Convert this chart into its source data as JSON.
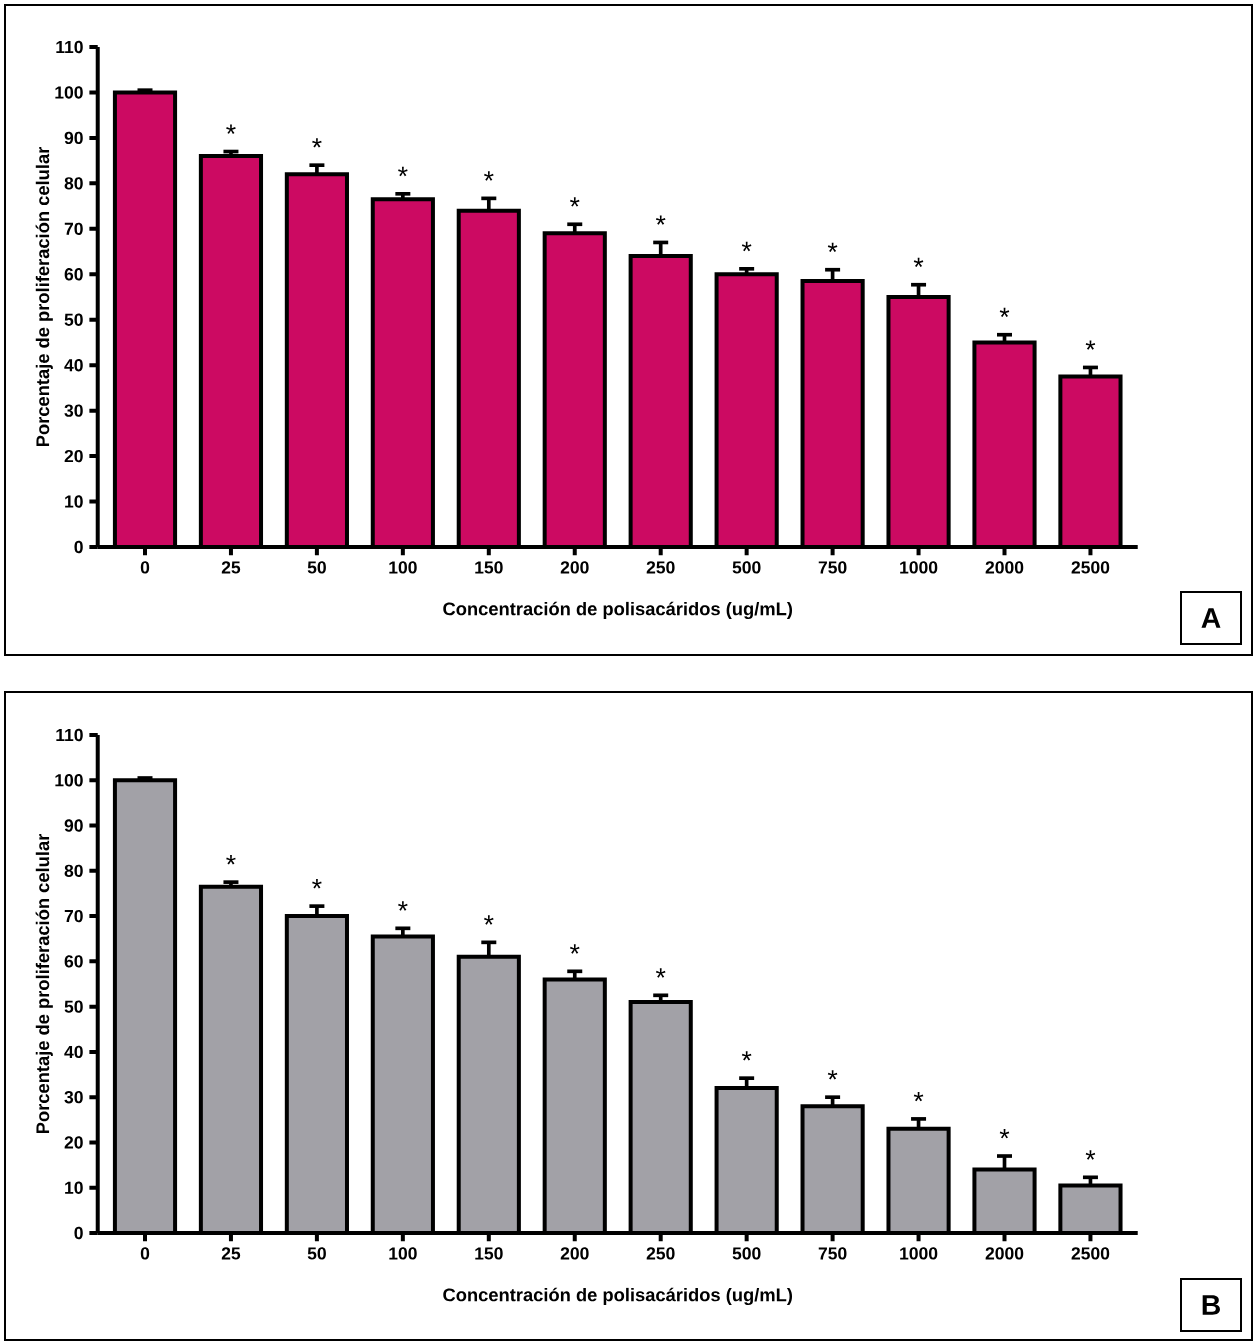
{
  "chart_data": [
    {
      "type": "bar",
      "categories": [
        "0",
        "25",
        "50",
        "100",
        "150",
        "200",
        "250",
        "500",
        "750",
        "1000",
        "2000",
        "2500"
      ],
      "values": [
        100,
        86,
        82,
        76.5,
        74,
        69,
        64,
        60,
        58.5,
        55,
        45,
        37.5
      ],
      "errors": [
        0.5,
        1,
        2,
        1.2,
        2.7,
        2,
        3,
        1.2,
        2.5,
        2.7,
        1.7,
        2
      ],
      "color": "#cc0a62",
      "ylim": [
        0,
        110
      ],
      "yticks": [
        0,
        10,
        20,
        30,
        40,
        50,
        60,
        70,
        80,
        90,
        100,
        110
      ],
      "xlabel": "Concentración de polisacáridos (ug/mL)",
      "ylabel": "Porcentaje de proliferación celular",
      "annotations": [
        {
          "text": "*",
          "x": "25",
          "y": 86
        },
        {
          "text": "*",
          "x": "50",
          "y": 82
        },
        {
          "text": "*",
          "x": "100",
          "y": 76.5
        },
        {
          "text": "*",
          "x": "150",
          "y": 74
        },
        {
          "text": "*",
          "x": "200",
          "y": 69
        },
        {
          "text": "*",
          "x": "250",
          "y": 64
        },
        {
          "text": "*",
          "x": "500",
          "y": 60
        },
        {
          "text": "*",
          "x": "750",
          "y": 58.5
        },
        {
          "text": "*",
          "x": "1000",
          "y": 55
        },
        {
          "text": "*",
          "x": "2000",
          "y": 45
        },
        {
          "text": "*",
          "x": "2500",
          "y": 37.5
        },
        "A"
      ]
    },
    {
      "type": "bar",
      "categories": [
        "0",
        "25",
        "50",
        "100",
        "150",
        "200",
        "250",
        "500",
        "750",
        "1000",
        "2000",
        "2500"
      ],
      "values": [
        100,
        76.5,
        70,
        65.5,
        61,
        56,
        51,
        32,
        28,
        23,
        14,
        10.5
      ],
      "errors": [
        0.5,
        1,
        2.2,
        1.8,
        3.2,
        1.8,
        1.5,
        2.2,
        2,
        2.2,
        3,
        1.8
      ],
      "color": "#a2a1a7",
      "ylim": [
        0,
        110
      ],
      "yticks": [
        0,
        10,
        20,
        30,
        40,
        50,
        60,
        70,
        80,
        90,
        100,
        110
      ],
      "xlabel": "Concentración de polisacáridos (ug/mL)",
      "ylabel": "Porcentaje de proliferación celular",
      "annotations": [
        {
          "text": "*",
          "x": "25",
          "y": 76.5
        },
        {
          "text": "*",
          "x": "50",
          "y": 70
        },
        {
          "text": "*",
          "x": "100",
          "y": 65.5
        },
        {
          "text": "*",
          "x": "150",
          "y": 61
        },
        {
          "text": "*",
          "x": "200",
          "y": 56
        },
        {
          "text": "*",
          "x": "250",
          "y": 51
        },
        {
          "text": "*",
          "x": "500",
          "y": 32
        },
        {
          "text": "*",
          "x": "750",
          "y": 28
        },
        {
          "text": "*",
          "x": "1000",
          "y": 23
        },
        {
          "text": "*",
          "x": "2000",
          "y": 14
        },
        {
          "text": "*",
          "x": "2500",
          "y": 10.5
        },
        "B"
      ]
    }
  ]
}
